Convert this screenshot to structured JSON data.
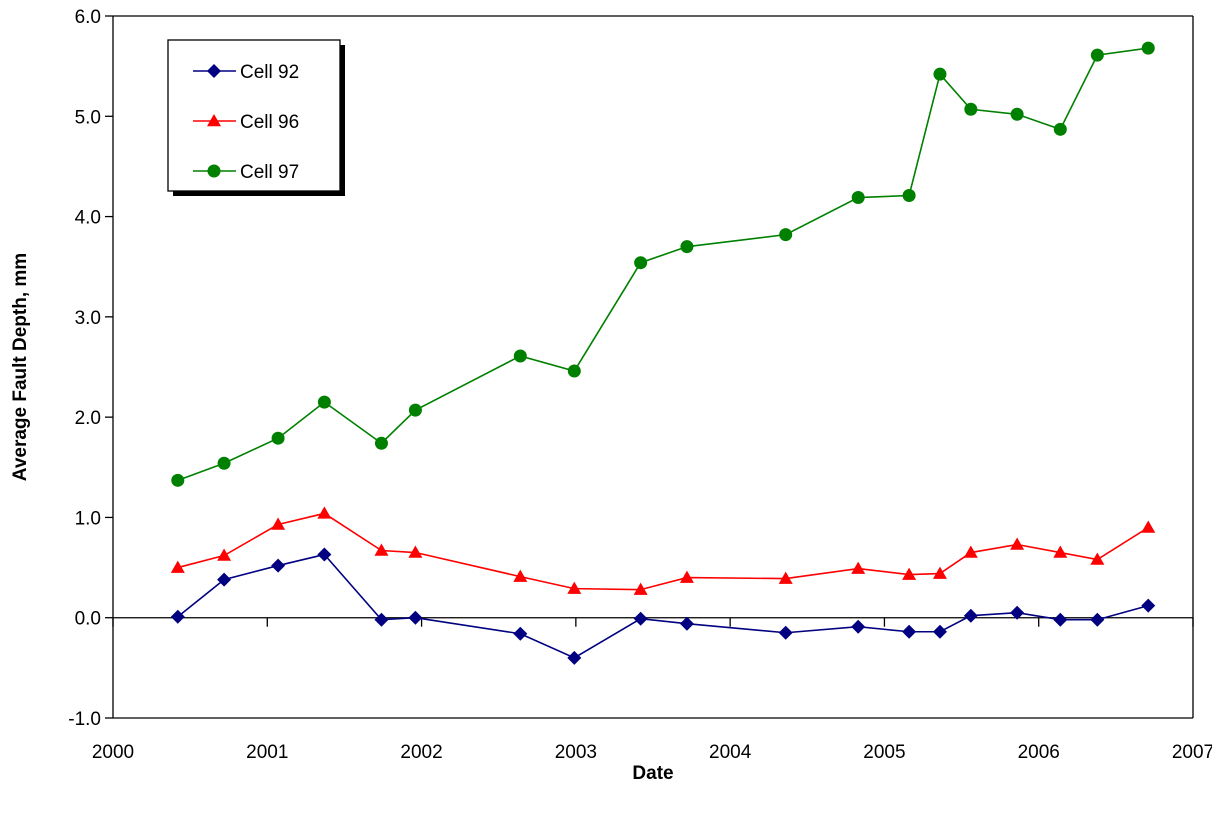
{
  "chart_data": {
    "type": "line",
    "title": "",
    "xlabel": "Date",
    "ylabel": "Average Fault Depth, mm",
    "xlim": [
      2000,
      2007
    ],
    "ylim": [
      -1.0,
      6.0
    ],
    "x_ticks": [
      "2000",
      "2001",
      "2002",
      "2003",
      "2004",
      "2005",
      "2006",
      "2007"
    ],
    "y_ticks": [
      "-1.0",
      "0.0",
      "1.0",
      "2.0",
      "3.0",
      "4.0",
      "5.0",
      "6.0"
    ],
    "grid": false,
    "legend_position": "top-left",
    "x": [
      2000.42,
      2000.72,
      2001.07,
      2001.37,
      2001.74,
      2001.96,
      2002.64,
      2002.99,
      2003.42,
      2003.72,
      2004.36,
      2004.83,
      2005.16,
      2005.36,
      2005.56,
      2005.86,
      2006.14,
      2006.38,
      2006.71
    ],
    "series": [
      {
        "name": "Cell 92",
        "color": "#000080",
        "marker": "diamond",
        "values": [
          0.01,
          0.38,
          0.52,
          0.63,
          -0.02,
          0.0,
          -0.16,
          -0.4,
          -0.01,
          -0.06,
          -0.15,
          -0.09,
          -0.14,
          -0.14,
          0.02,
          0.05,
          -0.02,
          -0.02,
          0.12
        ]
      },
      {
        "name": "Cell 96",
        "color": "#ff0000",
        "marker": "triangle",
        "values": [
          0.5,
          0.62,
          0.93,
          1.04,
          0.67,
          0.65,
          0.41,
          0.29,
          0.28,
          0.4,
          0.39,
          0.49,
          0.43,
          0.44,
          0.65,
          0.73,
          0.65,
          0.58,
          0.9
        ]
      },
      {
        "name": "Cell 97",
        "color": "#008000",
        "marker": "circle",
        "values": [
          1.37,
          1.54,
          1.79,
          2.15,
          1.74,
          2.07,
          2.61,
          2.46,
          3.54,
          3.7,
          3.82,
          4.19,
          4.21,
          5.42,
          5.07,
          5.02,
          4.87,
          5.61,
          5.68
        ]
      }
    ]
  }
}
